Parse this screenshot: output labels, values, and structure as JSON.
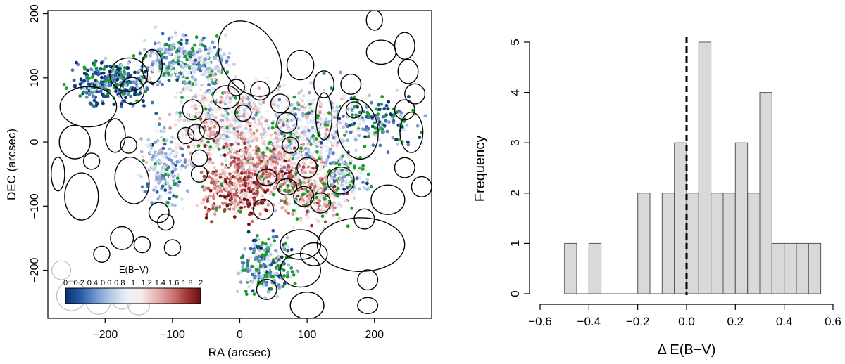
{
  "chart_data": [
    {
      "type": "scatter",
      "title": "",
      "xlabel": "RA (arcsec)",
      "ylabel": "DEC (arcsec)",
      "xlim": [
        -285,
        285
      ],
      "ylim": [
        -275,
        205
      ],
      "x_ticks": [
        -200,
        -100,
        0,
        100,
        200
      ],
      "y_ticks": [
        -200,
        -100,
        0,
        100,
        200
      ],
      "grid": false,
      "colorbar": {
        "label": "E(B−V)",
        "range": [
          0,
          2
        ],
        "tick_labels": [
          "0",
          "0.2",
          "0.4",
          "0.6",
          "0.8",
          "1",
          "1.2",
          "1.4",
          "1.6",
          "1.8",
          "2"
        ],
        "colors": [
          "#08306b",
          "#2c5aa8",
          "#6f95cf",
          "#b3c8e6",
          "#e8eef7",
          "#f7eded",
          "#e8b8b8",
          "#d17f7f",
          "#a83a3a",
          "#6b0f0f"
        ]
      },
      "point_colors": {
        "dust": "diverging E(B−V) scale",
        "green": "#1a9e2a"
      },
      "ellipses": [
        {
          "x": 15,
          "y": 130,
          "rx": 42,
          "ry": 60,
          "angle": 30
        },
        {
          "x": -225,
          "y": 55,
          "rx": 42,
          "ry": 30,
          "angle": 0
        },
        {
          "x": -165,
          "y": 105,
          "rx": 28,
          "ry": 25,
          "angle": 0
        },
        {
          "x": -130,
          "y": 118,
          "rx": 15,
          "ry": 25,
          "angle": 0
        },
        {
          "x": -160,
          "y": 80,
          "rx": 18,
          "ry": 20,
          "angle": 0
        },
        {
          "x": -70,
          "y": 50,
          "rx": 15,
          "ry": 15,
          "angle": 0
        },
        {
          "x": -20,
          "y": 70,
          "rx": 20,
          "ry": 17,
          "angle": 0
        },
        {
          "x": -5,
          "y": 85,
          "rx": 12,
          "ry": 12,
          "angle": 0
        },
        {
          "x": 30,
          "y": 80,
          "rx": 14,
          "ry": 14,
          "angle": 0
        },
        {
          "x": 60,
          "y": 60,
          "rx": 14,
          "ry": 14,
          "angle": 0
        },
        {
          "x": 90,
          "y": 120,
          "rx": 20,
          "ry": 22,
          "angle": 0
        },
        {
          "x": 125,
          "y": 90,
          "rx": 15,
          "ry": 20,
          "angle": 0
        },
        {
          "x": 125,
          "y": 40,
          "rx": 12,
          "ry": 35,
          "angle": 0
        },
        {
          "x": 175,
          "y": 20,
          "rx": 30,
          "ry": 45,
          "angle": 10
        },
        {
          "x": 200,
          "y": 190,
          "rx": 12,
          "ry": 15,
          "angle": 0
        },
        {
          "x": 210,
          "y": 140,
          "rx": 22,
          "ry": 18,
          "angle": 0
        },
        {
          "x": 245,
          "y": 150,
          "rx": 15,
          "ry": 20,
          "angle": 0
        },
        {
          "x": 250,
          "y": 110,
          "rx": 15,
          "ry": 18,
          "angle": 0
        },
        {
          "x": 260,
          "y": 75,
          "rx": 15,
          "ry": 15,
          "angle": 0
        },
        {
          "x": 245,
          "y": 50,
          "rx": 15,
          "ry": 15,
          "angle": 0
        },
        {
          "x": 255,
          "y": 15,
          "rx": 17,
          "ry": 30,
          "angle": 0
        },
        {
          "x": 245,
          "y": -40,
          "rx": 15,
          "ry": 15,
          "angle": 0
        },
        {
          "x": 270,
          "y": -70,
          "rx": 15,
          "ry": 15,
          "angle": 0
        },
        {
          "x": 220,
          "y": -90,
          "rx": 25,
          "ry": 22,
          "angle": 0
        },
        {
          "x": 165,
          "y": 90,
          "rx": 15,
          "ry": 15,
          "angle": 0
        },
        {
          "x": 170,
          "y": 50,
          "rx": 12,
          "ry": 12,
          "angle": 0
        },
        {
          "x": -245,
          "y": 0,
          "rx": 23,
          "ry": 25,
          "angle": 0
        },
        {
          "x": -185,
          "y": 10,
          "rx": 15,
          "ry": 25,
          "angle": 0
        },
        {
          "x": -165,
          "y": -5,
          "rx": 12,
          "ry": 12,
          "angle": 0
        },
        {
          "x": -235,
          "y": -85,
          "rx": 25,
          "ry": 35,
          "angle": 0
        },
        {
          "x": -220,
          "y": -30,
          "rx": 12,
          "ry": 12,
          "angle": 0
        },
        {
          "x": -160,
          "y": -60,
          "rx": 25,
          "ry": 35,
          "angle": 10
        },
        {
          "x": -120,
          "y": -110,
          "rx": 15,
          "ry": 15,
          "angle": 0
        },
        {
          "x": -110,
          "y": -125,
          "rx": 12,
          "ry": 12,
          "angle": 0
        },
        {
          "x": -270,
          "y": -50,
          "rx": 10,
          "ry": 25,
          "angle": 0
        },
        {
          "x": -175,
          "y": -150,
          "rx": 17,
          "ry": 17,
          "angle": 0
        },
        {
          "x": -145,
          "y": -160,
          "rx": 12,
          "ry": 12,
          "angle": 0
        },
        {
          "x": -100,
          "y": -165,
          "rx": 12,
          "ry": 12,
          "angle": 0
        },
        {
          "x": -205,
          "y": -175,
          "rx": 12,
          "ry": 12,
          "angle": 0
        },
        {
          "x": -80,
          "y": 10,
          "rx": 12,
          "ry": 12,
          "angle": 0
        },
        {
          "x": -65,
          "y": 15,
          "rx": 12,
          "ry": 12,
          "angle": 0
        },
        {
          "x": -60,
          "y": -25,
          "rx": 12,
          "ry": 12,
          "angle": 0
        },
        {
          "x": -60,
          "y": -50,
          "rx": 12,
          "ry": 12,
          "angle": 0
        },
        {
          "x": -45,
          "y": 20,
          "rx": 15,
          "ry": 15,
          "angle": 0
        },
        {
          "x": 5,
          "y": 45,
          "rx": 12,
          "ry": 12,
          "angle": 0
        },
        {
          "x": 40,
          "y": -55,
          "rx": 15,
          "ry": 12,
          "angle": 0
        },
        {
          "x": 70,
          "y": 30,
          "rx": 15,
          "ry": 15,
          "angle": 0
        },
        {
          "x": 75,
          "y": -5,
          "rx": 12,
          "ry": 12,
          "angle": 0
        },
        {
          "x": 100,
          "y": -40,
          "rx": 15,
          "ry": 15,
          "angle": 0
        },
        {
          "x": 70,
          "y": -70,
          "rx": 15,
          "ry": 12,
          "angle": 0
        },
        {
          "x": 95,
          "y": -85,
          "rx": 15,
          "ry": 15,
          "angle": 0
        },
        {
          "x": 120,
          "y": -95,
          "rx": 15,
          "ry": 15,
          "angle": 0
        },
        {
          "x": 150,
          "y": -60,
          "rx": 20,
          "ry": 20,
          "angle": 0
        },
        {
          "x": 110,
          "y": -175,
          "rx": 20,
          "ry": 17,
          "angle": 0
        },
        {
          "x": 35,
          "y": -105,
          "rx": 15,
          "ry": 15,
          "angle": 0
        },
        {
          "x": 90,
          "y": -160,
          "rx": 30,
          "ry": 22,
          "angle": 0
        },
        {
          "x": 90,
          "y": -200,
          "rx": 30,
          "ry": 25,
          "angle": 0
        },
        {
          "x": 180,
          "y": -160,
          "rx": 65,
          "ry": 40,
          "angle": 0
        },
        {
          "x": 185,
          "y": -120,
          "rx": 15,
          "ry": 15,
          "angle": 0
        },
        {
          "x": 40,
          "y": -230,
          "rx": 15,
          "ry": 15,
          "angle": 0
        },
        {
          "x": 190,
          "y": -215,
          "rx": 15,
          "ry": 15,
          "angle": 0
        },
        {
          "x": 190,
          "y": -255,
          "rx": 15,
          "ry": 12,
          "angle": 0
        },
        {
          "x": 100,
          "y": -255,
          "rx": 25,
          "ry": 20,
          "angle": 0
        }
      ]
    },
    {
      "type": "histogram",
      "title": "",
      "xlabel": "Δ E(B−V)",
      "ylabel": "Frequency",
      "bin_width": 0.05,
      "bin_edges_start": -0.5,
      "counts": [
        1,
        0,
        1,
        0,
        0,
        0,
        2,
        0,
        2,
        3,
        2,
        5,
        2,
        2,
        3,
        2,
        4,
        1,
        1,
        1,
        1
      ],
      "xlim": [
        -0.6,
        0.6
      ],
      "ylim": [
        0,
        5
      ],
      "x_ticks": [
        -0.6,
        -0.4,
        -0.2,
        0.0,
        0.2,
        0.4,
        0.6
      ],
      "x_tick_labels": [
        "−0.6",
        "−0.4",
        "−0.2",
        "0.0",
        "0.2",
        "0.4",
        "0.6"
      ],
      "y_ticks": [
        0,
        1,
        2,
        3,
        4,
        5
      ],
      "reference_line": {
        "x": 0.0,
        "style": "dashed"
      },
      "bar_color": "#d9d9d9",
      "grid": false
    }
  ]
}
